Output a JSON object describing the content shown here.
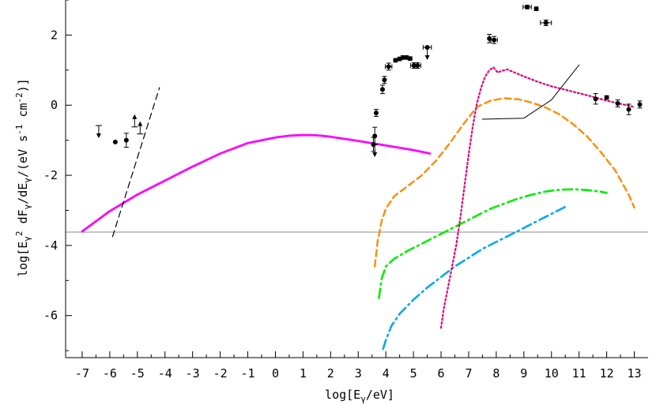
{
  "chart_data": {
    "type": "scatter",
    "xlabel": "log[Eγ/eV]",
    "ylabel": "log[Eγ² dFγ/dEγ/(eV s⁻¹ cm⁻²)]",
    "xlim": [
      -7.6,
      13.5
    ],
    "ylim": [
      -7.2,
      3.0
    ],
    "grid": false,
    "legend": "none",
    "x_ticks": [
      -7,
      -6,
      -5,
      -4,
      -3,
      -2,
      -1,
      0,
      1,
      2,
      3,
      4,
      5,
      6,
      7,
      8,
      9,
      10,
      11,
      12,
      13
    ],
    "x_tick_labels": [
      "-7",
      "-6",
      "-5",
      "-4",
      "-3",
      "-2",
      "-1",
      "0",
      "1",
      "2",
      "3",
      "4",
      "5",
      "6",
      "7",
      "8",
      "9",
      "10",
      "11",
      "12",
      "13"
    ],
    "y_ticks": [
      -6,
      -4,
      -2,
      0,
      2
    ],
    "y_tick_labels": [
      "-6",
      "-4",
      "-2",
      "0",
      "2"
    ],
    "reference_line": {
      "y": -3.62,
      "color": "#888888"
    },
    "points": [
      {
        "x": -5.8,
        "y": -1.05,
        "yerr": 0.0
      },
      {
        "x": -5.4,
        "y": -1.0,
        "yerr": 0.2
      },
      {
        "x": 3.55,
        "y": -1.12,
        "yerr": 0.2
      },
      {
        "x": 3.6,
        "y": -0.88,
        "yerr": 0.25
      },
      {
        "x": 3.65,
        "y": -0.22,
        "yerr": 0.1
      },
      {
        "x": 3.88,
        "y": 0.45,
        "yerr": 0.12
      },
      {
        "x": 3.95,
        "y": 0.72,
        "yerr": 0.1
      },
      {
        "x": 4.1,
        "y": 1.1,
        "yerr": 0.1,
        "xerr": 0.12
      },
      {
        "x": 4.35,
        "y": 1.28,
        "yerr": 0.05
      },
      {
        "x": 4.5,
        "y": 1.32,
        "yerr": 0.05
      },
      {
        "x": 4.62,
        "y": 1.36,
        "yerr": 0.05
      },
      {
        "x": 4.75,
        "y": 1.36,
        "yerr": 0.05
      },
      {
        "x": 4.88,
        "y": 1.33,
        "yerr": 0.05
      },
      {
        "x": 5.02,
        "y": 1.13,
        "yerr": 0.08,
        "xerr": 0.12
      },
      {
        "x": 5.15,
        "y": 1.13,
        "yerr": 0.08,
        "xerr": 0.12
      },
      {
        "x": 5.5,
        "y": 1.65,
        "yerr": 0.0,
        "xerr": 0.15
      },
      {
        "x": 7.75,
        "y": 1.9,
        "yerr": 0.12
      },
      {
        "x": 7.92,
        "y": 1.86,
        "yerr": 0.1,
        "xerr": 0.12
      },
      {
        "x": 9.12,
        "y": 2.8,
        "yerr": 0.05,
        "xerr": 0.15
      },
      {
        "x": 9.45,
        "y": 2.75,
        "yerr": 0.05
      },
      {
        "x": 9.8,
        "y": 2.35,
        "yerr": 0.08,
        "xerr": 0.2
      },
      {
        "x": 11.6,
        "y": 0.18,
        "yerr": 0.15
      },
      {
        "x": 12.0,
        "y": 0.22,
        "yerr": 0.05
      },
      {
        "x": 12.4,
        "y": 0.05,
        "yerr": 0.1
      },
      {
        "x": 12.8,
        "y": -0.12,
        "yerr": 0.15
      },
      {
        "x": 13.2,
        "y": 0.02,
        "yerr": 0.1
      }
    ],
    "upper_limits": [
      {
        "x": -6.4,
        "y": -0.58
      },
      {
        "x": 3.6,
        "y": -1.12
      },
      {
        "x": 5.5,
        "y": 1.65
      }
    ],
    "lower_limits": [
      {
        "x": -5.1,
        "y": -0.62
      },
      {
        "x": -4.9,
        "y": -0.82
      }
    ],
    "series": [
      {
        "color": "#ff00ff",
        "style": "solid",
        "width": 2.8,
        "x": [
          -7,
          -6,
          -5,
          -4,
          -3,
          -2,
          -1,
          0,
          0.5,
          1,
          1.5,
          2,
          3,
          4,
          5,
          5.6
        ],
        "y": [
          -3.6,
          -3.02,
          -2.55,
          -2.15,
          -1.75,
          -1.38,
          -1.08,
          -0.92,
          -0.87,
          -0.85,
          -0.86,
          -0.9,
          -1.02,
          -1.15,
          -1.28,
          -1.38
        ]
      },
      {
        "color": "#000000",
        "style": "dashed",
        "width": 1.2,
        "x": [
          -5.9,
          -4.2
        ],
        "y": [
          -3.75,
          0.5
        ]
      },
      {
        "color": "#ff8c00",
        "style": "dashed",
        "width": 2.4,
        "x": [
          3.6,
          3.7,
          3.85,
          4.0,
          4.3,
          4.8,
          5.3,
          5.8,
          6.3,
          6.8,
          7.3,
          7.8,
          8.3,
          8.8,
          9.3,
          9.8,
          10.3,
          10.8,
          11.3,
          11.8,
          12.3,
          12.8,
          13.0
        ],
        "y": [
          -4.6,
          -3.9,
          -3.3,
          -2.95,
          -2.6,
          -2.3,
          -2.0,
          -1.6,
          -1.1,
          -0.55,
          -0.05,
          0.13,
          0.2,
          0.17,
          0.07,
          -0.07,
          -0.27,
          -0.55,
          -0.9,
          -1.35,
          -1.85,
          -2.55,
          -2.92
        ]
      },
      {
        "color": "#00ee00",
        "style": "dashdot",
        "width": 2.6,
        "x": [
          3.75,
          3.85,
          4.0,
          4.3,
          4.8,
          5.3,
          5.8,
          6.3,
          6.8,
          7.3,
          7.8,
          8.3,
          8.8,
          9.3,
          9.8,
          10.3,
          10.8,
          11.3,
          11.8,
          12.0
        ],
        "y": [
          -5.5,
          -4.95,
          -4.6,
          -4.38,
          -4.15,
          -3.95,
          -3.75,
          -3.55,
          -3.35,
          -3.15,
          -2.95,
          -2.8,
          -2.66,
          -2.55,
          -2.46,
          -2.41,
          -2.4,
          -2.42,
          -2.47,
          -2.5
        ]
      },
      {
        "color": "#00aaee",
        "style": "dashdot",
        "width": 2.6,
        "x": [
          3.9,
          4.0,
          4.2,
          4.5,
          5.0,
          5.5,
          6.0,
          6.5,
          7.0,
          7.5,
          8.0,
          8.5,
          9.0,
          9.5,
          10.0,
          10.5
        ],
        "y": [
          -6.95,
          -6.7,
          -6.3,
          -5.95,
          -5.55,
          -5.2,
          -4.9,
          -4.6,
          -4.35,
          -4.1,
          -3.9,
          -3.7,
          -3.5,
          -3.3,
          -3.1,
          -2.9
        ]
      },
      {
        "color": "#e0007a",
        "style": "dotted",
        "width": 2.2,
        "x": [
          6.0,
          6.1,
          6.25,
          6.4,
          6.55,
          6.7,
          6.85,
          7.0,
          7.15,
          7.3,
          7.45,
          7.6,
          7.75,
          7.9,
          8.05,
          8.2,
          8.4,
          8.7,
          9.0,
          9.5,
          10.0,
          10.5,
          11.0,
          11.5,
          12.0,
          12.5,
          13.0
        ],
        "y": [
          -6.35,
          -5.8,
          -5.2,
          -4.6,
          -4.0,
          -3.2,
          -2.3,
          -1.4,
          -0.6,
          0.05,
          0.5,
          0.82,
          1.0,
          1.08,
          0.93,
          0.98,
          1.02,
          0.92,
          0.82,
          0.67,
          0.54,
          0.44,
          0.34,
          0.24,
          0.13,
          0.04,
          -0.05
        ]
      },
      {
        "color": "#000000",
        "style": "solid",
        "width": 1.0,
        "x": [
          7.5,
          9.0,
          10.0,
          11.0
        ],
        "y": [
          -0.4,
          -0.37,
          0.15,
          1.15
        ]
      }
    ]
  }
}
